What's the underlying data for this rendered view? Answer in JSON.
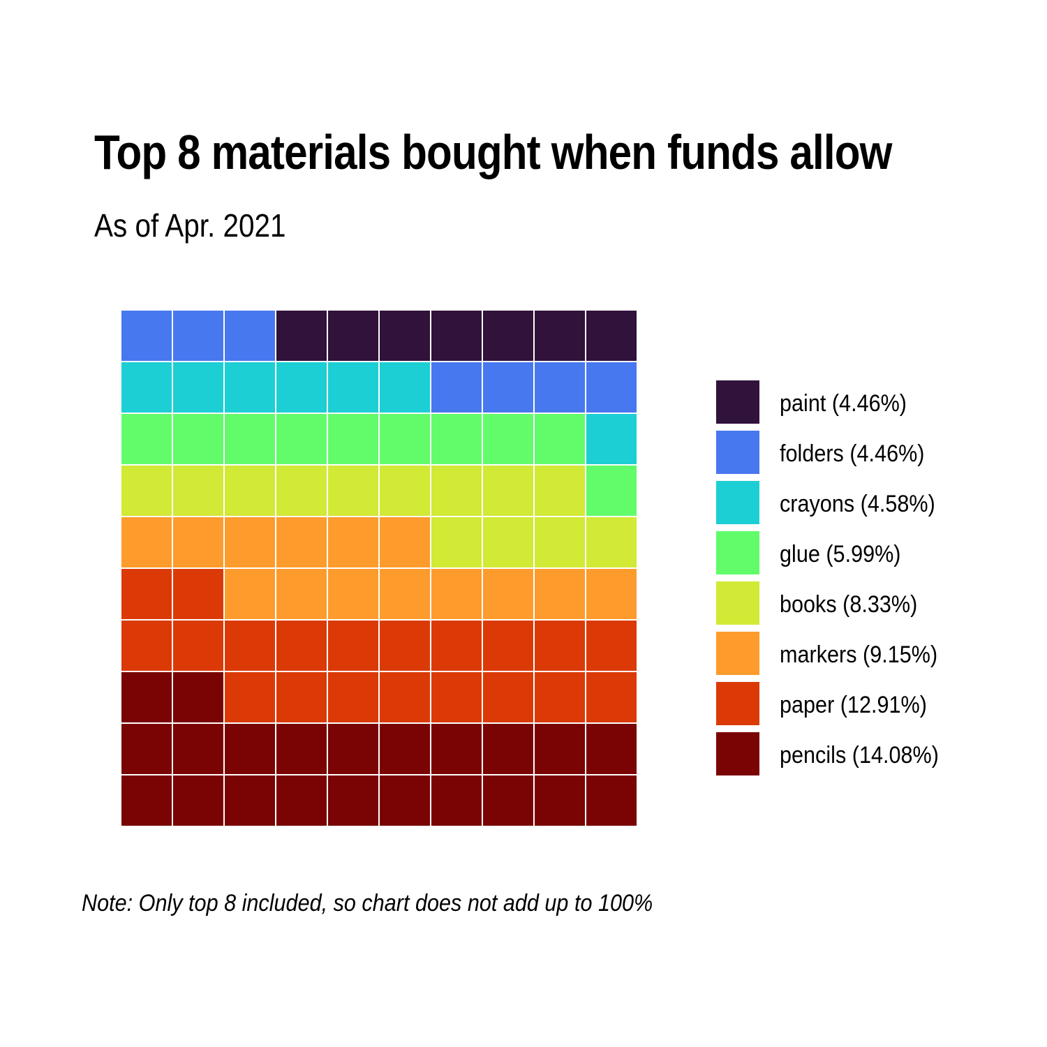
{
  "chart_data": {
    "type": "waffle",
    "title": "Top 8 materials bought when funds allow",
    "subtitle": "As of Apr. 2021",
    "caption": "Note: Only top 8 included, so chart does not add up to 100%",
    "grid": {
      "rows": 10,
      "columns": 10
    },
    "legend_position": "right",
    "series": [
      {
        "name": "paint",
        "label": "paint (4.46%)",
        "percent": 4.46,
        "squares": 7,
        "color": "#30123B"
      },
      {
        "name": "folders",
        "label": "folders (4.46%)",
        "percent": 4.46,
        "squares": 7,
        "color": "#4778EF"
      },
      {
        "name": "crayons",
        "label": "crayons (4.58%)",
        "percent": 4.58,
        "squares": 7,
        "color": "#1BCFD4"
      },
      {
        "name": "glue",
        "label": "glue (5.99%)",
        "percent": 5.99,
        "squares": 10,
        "color": "#62FC6B"
      },
      {
        "name": "books",
        "label": "books (8.33%)",
        "percent": 8.33,
        "squares": 13,
        "color": "#D2E935"
      },
      {
        "name": "markers",
        "label": "markers (9.15%)",
        "percent": 9.15,
        "squares": 14,
        "color": "#FE9B2D"
      },
      {
        "name": "paper",
        "label": "paper (12.91%)",
        "percent": 12.91,
        "squares": 20,
        "color": "#DB3A07"
      },
      {
        "name": "pencils",
        "label": "pencils (14.08%)",
        "percent": 14.08,
        "squares": 22,
        "color": "#7A0403"
      }
    ]
  }
}
